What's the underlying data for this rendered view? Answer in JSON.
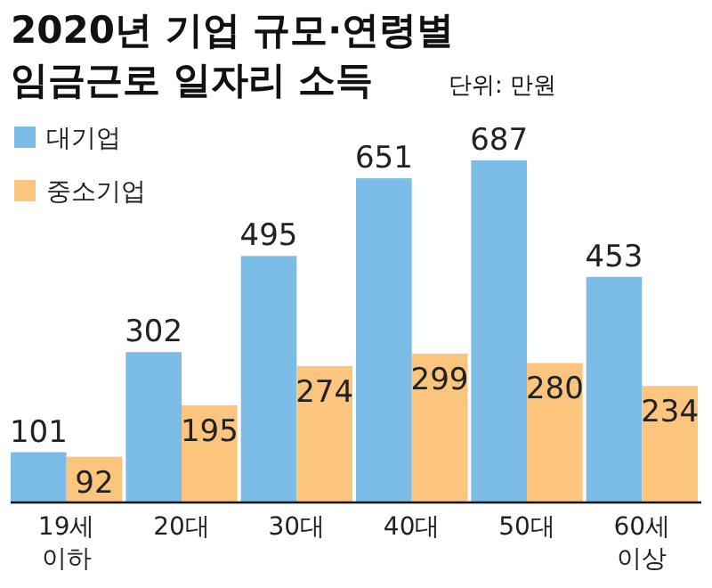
{
  "chart_data": {
    "type": "bar",
    "title": "2020년 기업 규모·연령별\n임금근로 일자리 소득",
    "subtitle": "단위: 만원",
    "categories": [
      "19세\n이하",
      "20대",
      "30대",
      "40대",
      "50대",
      "60세\n이상"
    ],
    "series": [
      {
        "name": "대기업",
        "color": "#7cbde8",
        "values": [
          101,
          302,
          495,
          651,
          687,
          453
        ]
      },
      {
        "name": "중소기업",
        "color": "#fcc57e",
        "values": [
          92,
          195,
          274,
          299,
          280,
          234
        ]
      }
    ],
    "data_labels": true,
    "legend": "top left"
  }
}
